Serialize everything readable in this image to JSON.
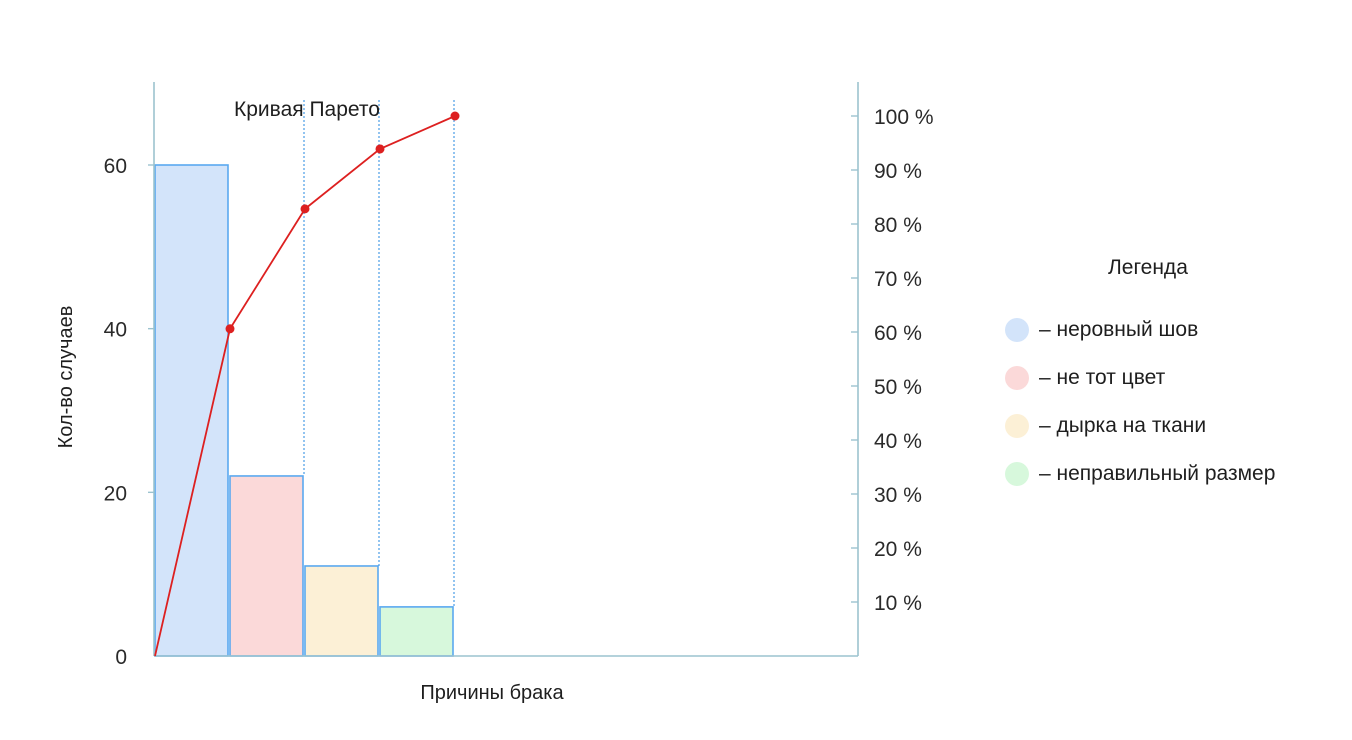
{
  "chart_data": {
    "type": "bar",
    "title": "Кривая Парето",
    "xlabel": "Причины брака",
    "ylabel": "Кол-во случаев",
    "categories": [
      "неровный шов",
      "не тот цвет",
      "дырка на ткани",
      "неправильный размер"
    ],
    "values": [
      60,
      22,
      11,
      6
    ],
    "bar_colors": [
      "#d3e4fa",
      "#fbd9d9",
      "#fcf0d6",
      "#d7f8dc"
    ],
    "bar_stroke": "#5aa9f0",
    "ylim": [
      0,
      70
    ],
    "y_ticks": [
      "0",
      "20",
      "40",
      "60"
    ],
    "y2_ticks": [
      "10 %",
      "20 %",
      "30 %",
      "40 %",
      "50 %",
      "60 %",
      "70 %",
      "80 %",
      "90 %",
      "100 %"
    ],
    "pareto": {
      "name": "Кривая Парето",
      "color": "#dd2020",
      "values_percent": [
        0,
        60.6,
        82.8,
        93.9,
        100
      ]
    },
    "grid": false,
    "legend_position": "right"
  },
  "legend": {
    "title": "Легенда",
    "items": [
      {
        "label": "– неровный шов",
        "color": "#d3e4fa"
      },
      {
        "label": "– не тот цвет",
        "color": "#fbd9d9"
      },
      {
        "label": "– дырка на ткани",
        "color": "#fcf0d6"
      },
      {
        "label": "– неправильный размер",
        "color": "#d7f8dc"
      }
    ]
  }
}
